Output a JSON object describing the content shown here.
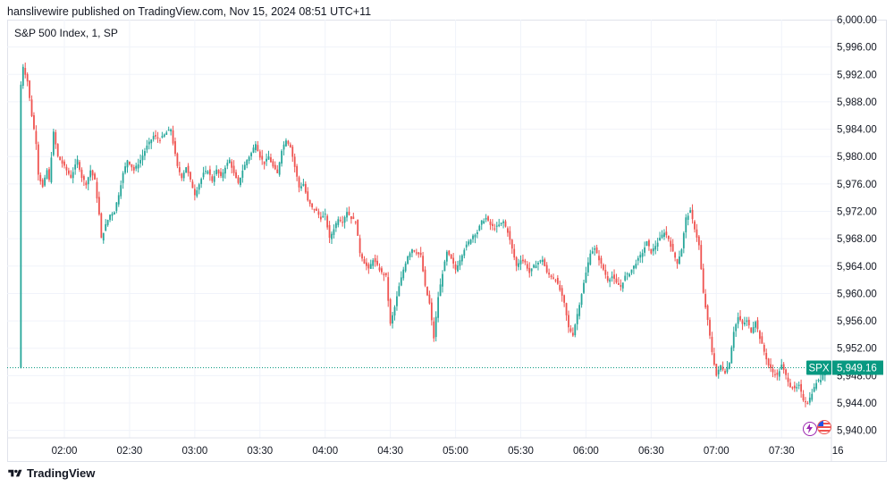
{
  "header": {
    "published_by": "hanslivewire published on TradingView.com, Nov 15, 2024 08:51 UTC+11"
  },
  "legend": {
    "symbol": "S&P 500 Index, 1, SP"
  },
  "last_price": {
    "ticker": "SPX",
    "value": "5,949.16"
  },
  "footer": {
    "brand": "TradingView",
    "logo_icon": "tradingview-logo-icon"
  },
  "colors": {
    "up": "#26a69a",
    "down": "#ef5350",
    "grid": "#f0f3fa",
    "price_tag": "#089981"
  },
  "chart_data": {
    "type": "candlestick",
    "title": "S&P 500 Index, 1, SP",
    "ylim": [
      5938,
      6000
    ],
    "y_ticks": [
      "6,000.00",
      "5,996.00",
      "5,992.00",
      "5,988.00",
      "5,984.00",
      "5,980.00",
      "5,976.00",
      "5,972.00",
      "5,968.00",
      "5,964.00",
      "5,960.00",
      "5,956.00",
      "5,952.00",
      "5,948.00",
      "5,944.00",
      "5,940.00"
    ],
    "x_ticks": [
      "02:00",
      "02:30",
      "03:00",
      "03:30",
      "04:00",
      "04:30",
      "05:00",
      "05:30",
      "06:00",
      "06:30",
      "07:00",
      "07:30",
      "16"
    ],
    "series": [
      {
        "name": "SPX",
        "path_points": [
          [
            "01:40",
            5990.5
          ],
          [
            "01:41",
            5993.2
          ],
          [
            "01:43",
            5991.0
          ],
          [
            "01:45",
            5986.0
          ],
          [
            "01:47",
            5982.0
          ],
          [
            "01:48",
            5977.5
          ],
          [
            "01:50",
            5975.5
          ],
          [
            "01:52",
            5978.0
          ],
          [
            "01:53",
            5976.5
          ],
          [
            "01:55",
            5983.5
          ],
          [
            "01:57",
            5980.0
          ],
          [
            "02:00",
            5978.5
          ],
          [
            "02:03",
            5977.0
          ],
          [
            "02:06",
            5979.5
          ],
          [
            "02:08",
            5977.0
          ],
          [
            "02:10",
            5976.0
          ],
          [
            "02:12",
            5978.0
          ],
          [
            "02:14",
            5976.5
          ],
          [
            "02:16",
            5971.5
          ],
          [
            "02:17",
            5968.0
          ],
          [
            "02:19",
            5970.0
          ],
          [
            "02:21",
            5971.5
          ],
          [
            "02:23",
            5972.0
          ],
          [
            "02:25",
            5974.5
          ],
          [
            "02:27",
            5977.5
          ],
          [
            "02:29",
            5979.5
          ],
          [
            "02:32",
            5978.0
          ],
          [
            "02:35",
            5979.5
          ],
          [
            "02:38",
            5981.5
          ],
          [
            "02:41",
            5983.0
          ],
          [
            "02:44",
            5982.5
          ],
          [
            "02:47",
            5983.5
          ],
          [
            "02:49",
            5984.0
          ],
          [
            "02:50",
            5982.0
          ],
          [
            "02:52",
            5978.5
          ],
          [
            "02:54",
            5977.0
          ],
          [
            "02:56",
            5978.5
          ],
          [
            "02:58",
            5976.5
          ],
          [
            "03:00",
            5974.5
          ],
          [
            "03:02",
            5976.0
          ],
          [
            "03:04",
            5977.5
          ],
          [
            "03:06",
            5978.0
          ],
          [
            "03:08",
            5976.5
          ],
          [
            "03:10",
            5978.0
          ],
          [
            "03:12",
            5977.0
          ],
          [
            "03:14",
            5978.5
          ],
          [
            "03:16",
            5979.5
          ],
          [
            "03:18",
            5977.5
          ],
          [
            "03:20",
            5976.0
          ],
          [
            "03:22",
            5978.0
          ],
          [
            "03:24",
            5979.5
          ],
          [
            "03:26",
            5980.5
          ],
          [
            "03:28",
            5982.0
          ],
          [
            "03:30",
            5980.0
          ],
          [
            "03:32",
            5979.0
          ],
          [
            "03:34",
            5980.0
          ],
          [
            "03:36",
            5978.5
          ],
          [
            "03:38",
            5977.5
          ],
          [
            "03:40",
            5981.0
          ],
          [
            "03:42",
            5982.5
          ],
          [
            "03:44",
            5981.5
          ],
          [
            "03:46",
            5978.5
          ],
          [
            "03:48",
            5975.5
          ],
          [
            "03:50",
            5976.0
          ],
          [
            "03:52",
            5973.5
          ],
          [
            "03:54",
            5972.5
          ],
          [
            "03:56",
            5972.0
          ],
          [
            "03:58",
            5971.0
          ],
          [
            "04:00",
            5971.5
          ],
          [
            "04:02",
            5968.0
          ],
          [
            "04:04",
            5969.5
          ],
          [
            "04:06",
            5971.0
          ],
          [
            "04:08",
            5970.5
          ],
          [
            "04:10",
            5972.0
          ],
          [
            "04:12",
            5971.0
          ],
          [
            "04:14",
            5970.5
          ],
          [
            "04:16",
            5966.0
          ],
          [
            "04:18",
            5964.5
          ],
          [
            "04:20",
            5963.5
          ],
          [
            "04:22",
            5965.0
          ],
          [
            "04:24",
            5964.0
          ],
          [
            "04:26",
            5963.0
          ],
          [
            "04:28",
            5962.5
          ],
          [
            "04:30",
            5955.5
          ],
          [
            "04:32",
            5958.0
          ],
          [
            "04:34",
            5961.0
          ],
          [
            "04:36",
            5963.5
          ],
          [
            "04:38",
            5965.5
          ],
          [
            "04:40",
            5966.5
          ],
          [
            "04:42",
            5966.0
          ],
          [
            "04:44",
            5965.5
          ],
          [
            "04:46",
            5961.0
          ],
          [
            "04:48",
            5958.5
          ],
          [
            "04:50",
            5953.5
          ],
          [
            "04:52",
            5959.5
          ],
          [
            "04:54",
            5963.0
          ],
          [
            "04:56",
            5966.0
          ],
          [
            "04:58",
            5965.0
          ],
          [
            "05:00",
            5963.5
          ],
          [
            "05:02",
            5965.0
          ],
          [
            "05:04",
            5966.5
          ],
          [
            "05:06",
            5967.5
          ],
          [
            "05:08",
            5968.5
          ],
          [
            "05:10",
            5969.0
          ],
          [
            "05:12",
            5970.5
          ],
          [
            "05:14",
            5971.0
          ],
          [
            "05:16",
            5970.0
          ],
          [
            "05:18",
            5969.5
          ],
          [
            "05:20",
            5970.0
          ],
          [
            "05:22",
            5970.5
          ],
          [
            "05:24",
            5969.0
          ],
          [
            "05:26",
            5966.5
          ],
          [
            "05:28",
            5964.0
          ],
          [
            "05:30",
            5965.0
          ],
          [
            "05:32",
            5964.5
          ],
          [
            "05:34",
            5963.0
          ],
          [
            "05:36",
            5964.0
          ],
          [
            "05:38",
            5964.5
          ],
          [
            "05:40",
            5965.0
          ],
          [
            "05:42",
            5963.0
          ],
          [
            "05:44",
            5962.5
          ],
          [
            "05:46",
            5962.0
          ],
          [
            "05:48",
            5960.5
          ],
          [
            "05:50",
            5958.5
          ],
          [
            "05:52",
            5955.0
          ],
          [
            "05:54",
            5954.0
          ],
          [
            "05:56",
            5957.0
          ],
          [
            "05:58",
            5960.0
          ],
          [
            "06:00",
            5963.0
          ],
          [
            "06:02",
            5966.0
          ],
          [
            "06:04",
            5966.5
          ],
          [
            "06:06",
            5965.0
          ],
          [
            "06:08",
            5963.5
          ],
          [
            "06:10",
            5962.0
          ],
          [
            "06:12",
            5962.5
          ],
          [
            "06:14",
            5961.5
          ],
          [
            "06:16",
            5961.0
          ],
          [
            "06:18",
            5962.5
          ],
          [
            "06:20",
            5963.0
          ],
          [
            "06:22",
            5964.0
          ],
          [
            "06:24",
            5965.0
          ],
          [
            "06:26",
            5966.0
          ],
          [
            "06:28",
            5967.5
          ],
          [
            "06:30",
            5966.0
          ],
          [
            "06:32",
            5967.0
          ],
          [
            "06:34",
            5968.0
          ],
          [
            "06:36",
            5969.0
          ],
          [
            "06:38",
            5968.0
          ],
          [
            "06:40",
            5966.0
          ],
          [
            "06:42",
            5964.5
          ],
          [
            "06:44",
            5966.5
          ],
          [
            "06:46",
            5971.0
          ],
          [
            "06:48",
            5972.0
          ],
          [
            "06:50",
            5969.5
          ],
          [
            "06:52",
            5967.0
          ],
          [
            "06:54",
            5960.0
          ],
          [
            "06:56",
            5956.0
          ],
          [
            "06:58",
            5951.5
          ],
          [
            "07:00",
            5948.0
          ],
          [
            "07:02",
            5949.5
          ],
          [
            "07:04",
            5948.5
          ],
          [
            "07:06",
            5950.0
          ],
          [
            "07:08",
            5954.5
          ],
          [
            "07:10",
            5956.5
          ],
          [
            "07:12",
            5955.5
          ],
          [
            "07:14",
            5956.0
          ],
          [
            "07:16",
            5954.5
          ],
          [
            "07:18",
            5956.0
          ],
          [
            "07:20",
            5953.5
          ],
          [
            "07:22",
            5951.5
          ],
          [
            "07:24",
            5949.5
          ],
          [
            "07:26",
            5948.5
          ],
          [
            "07:28",
            5948.0
          ],
          [
            "07:30",
            5949.5
          ],
          [
            "07:32",
            5948.0
          ],
          [
            "07:34",
            5946.5
          ],
          [
            "07:36",
            5946.0
          ],
          [
            "07:38",
            5946.5
          ],
          [
            "07:40",
            5944.5
          ],
          [
            "07:42",
            5944.0
          ],
          [
            "07:44",
            5945.5
          ],
          [
            "07:46",
            5947.0
          ],
          [
            "07:48",
            5947.5
          ],
          [
            "07:50",
            5949.16
          ]
        ]
      }
    ],
    "grid": true,
    "legend": "top-left"
  }
}
